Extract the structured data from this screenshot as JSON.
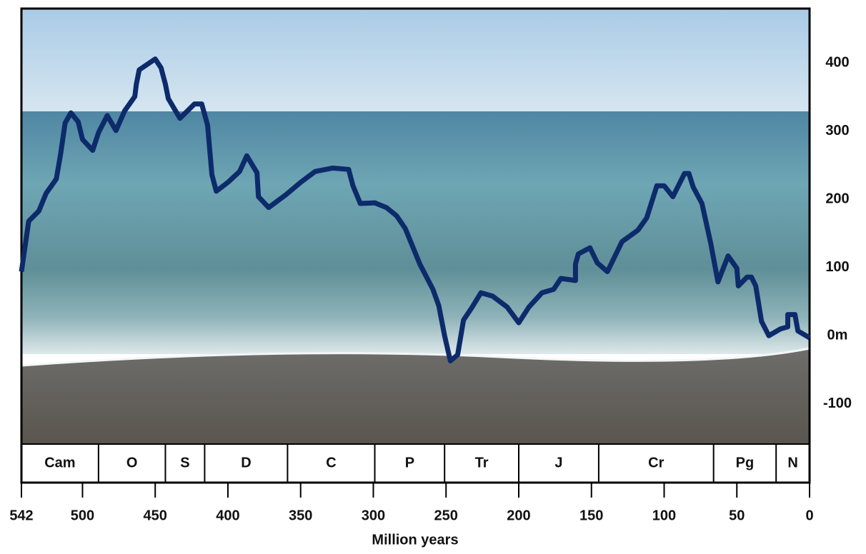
{
  "chart_data": {
    "type": "line",
    "x_label": "Million years",
    "x": [
      542,
      537,
      530,
      525,
      518,
      515,
      512,
      508,
      503,
      500,
      493,
      489,
      483,
      477,
      471,
      464,
      463,
      461,
      450,
      446,
      443,
      441,
      433,
      423,
      418,
      414,
      411,
      408,
      400,
      392,
      387,
      380,
      379,
      372,
      360,
      350,
      340,
      328,
      317,
      314,
      309,
      299,
      291,
      284,
      278,
      268,
      259,
      255,
      251,
      247,
      242,
      238,
      232,
      226,
      218,
      208,
      200,
      193,
      184,
      176,
      171,
      161,
      161,
      159,
      151,
      146,
      139,
      129,
      118,
      112,
      105,
      100,
      94,
      86,
      83,
      80,
      74,
      68,
      63,
      56,
      50,
      49,
      43,
      40,
      37,
      33,
      28,
      20,
      15,
      15,
      10,
      8,
      0
    ],
    "series": [
      {
        "color": "#0d2b6b",
        "values": [
          94,
          168,
          183,
          209,
          230,
          267,
          312,
          327,
          314,
          288,
          272,
          298,
          323,
          301,
          330,
          351,
          369,
          390,
          406,
          393,
          369,
          348,
          319,
          340,
          340,
          309,
          236,
          212,
          225,
          241,
          264,
          239,
          204,
          188,
          207,
          225,
          241,
          246,
          244,
          220,
          194,
          195,
          188,
          176,
          157,
          105,
          68,
          44,
          0,
          -37,
          -28,
          23,
          42,
          63,
          58,
          42,
          19,
          42,
          63,
          68,
          84,
          81,
          105,
          120,
          129,
          107,
          94,
          138,
          155,
          173,
          220,
          220,
          204,
          238,
          238,
          218,
          194,
          136,
          79,
          117,
          99,
          73,
          86,
          86,
          73,
          21,
          0,
          10,
          13,
          31,
          31,
          7,
          -3
        ]
      }
    ],
    "xlim": [
      542,
      0
    ],
    "xticks": [
      542,
      500,
      450,
      400,
      350,
      300,
      250,
      200,
      150,
      100,
      50,
      0
    ],
    "ylim": [
      -159,
      480
    ],
    "yticks": [
      -100,
      {
        "value": 0,
        "label": "0m"
      },
      100,
      200,
      300,
      400
    ],
    "periods": [
      {
        "name": "Cam",
        "start": 542,
        "end": 489
      },
      {
        "name": "O",
        "start": 489,
        "end": 443
      },
      {
        "name": "S",
        "start": 443,
        "end": 416
      },
      {
        "name": "D",
        "start": 416,
        "end": 359
      },
      {
        "name": "C",
        "start": 359,
        "end": 299
      },
      {
        "name": "P",
        "start": 299,
        "end": 251
      },
      {
        "name": "Tr",
        "start": 251,
        "end": 200
      },
      {
        "name": "J",
        "start": 200,
        "end": 145
      },
      {
        "name": "Cr",
        "start": 145,
        "end": 66
      },
      {
        "name": "Pg",
        "start": 66,
        "end": 23
      },
      {
        "name": "N",
        "start": 23,
        "end": 0
      }
    ]
  }
}
